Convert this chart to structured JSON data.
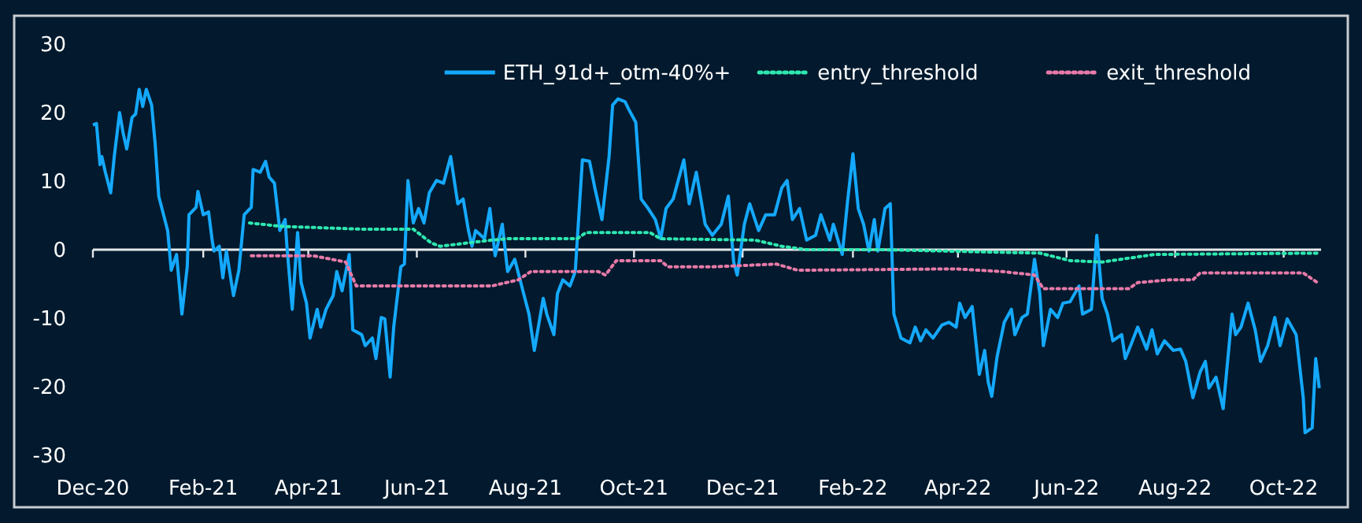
{
  "chart_data": {
    "type": "line",
    "legend": "top right",
    "xlim": [
      "2020-12-01",
      "2022-10-22"
    ],
    "xticks": [
      {
        "value": "2020-12-01",
        "label": "Dec-20"
      },
      {
        "value": "2021-02-01",
        "label": "Feb-21"
      },
      {
        "value": "2021-04-01",
        "label": "Apr-21"
      },
      {
        "value": "2021-06-01",
        "label": "Jun-21"
      },
      {
        "value": "2021-08-01",
        "label": "Aug-21"
      },
      {
        "value": "2021-10-01",
        "label": "Oct-21"
      },
      {
        "value": "2021-12-01",
        "label": "Dec-21"
      },
      {
        "value": "2022-02-01",
        "label": "Feb-22"
      },
      {
        "value": "2022-04-01",
        "label": "Apr-22"
      },
      {
        "value": "2022-06-01",
        "label": "Jun-22"
      },
      {
        "value": "2022-08-01",
        "label": "Aug-22"
      },
      {
        "value": "2022-10-01",
        "label": "Oct-22"
      }
    ],
    "ylim": [
      -30,
      30
    ],
    "yticks": [
      -30,
      -20,
      -10,
      0,
      10,
      20,
      30
    ],
    "series": [
      {
        "name": "ETH_91d+_otm-40%+",
        "color": "#14a9ff",
        "line_style": "solid",
        "x": [
          "2020-12-01",
          "2020-12-03",
          "2020-12-05",
          "2020-12-06",
          "2020-12-08",
          "2020-12-11",
          "2020-12-13",
          "2020-12-16",
          "2020-12-18",
          "2020-12-20",
          "2020-12-23",
          "2020-12-25",
          "2020-12-27",
          "2020-12-29",
          "2020-12-31",
          "2021-01-03",
          "2021-01-05",
          "2021-01-07",
          "2021-01-12",
          "2021-01-14",
          "2021-01-17",
          "2021-01-20",
          "2021-01-23",
          "2021-01-24",
          "2021-01-28",
          "2021-01-29",
          "2021-02-01",
          "2021-02-04",
          "2021-02-06",
          "2021-02-07",
          "2021-02-10",
          "2021-02-12",
          "2021-02-14",
          "2021-02-18",
          "2021-02-21",
          "2021-02-24",
          "2021-02-28",
          "2021-03-01",
          "2021-03-05",
          "2021-03-08",
          "2021-03-10",
          "2021-03-13",
          "2021-03-16",
          "2021-03-19",
          "2021-03-20",
          "2021-03-23",
          "2021-03-26",
          "2021-03-28",
          "2021-03-31",
          "2021-04-02",
          "2021-04-06",
          "2021-04-08",
          "2021-04-11",
          "2021-04-15",
          "2021-04-17",
          "2021-04-20",
          "2021-04-24",
          "2021-04-26",
          "2021-05-01",
          "2021-05-03",
          "2021-05-07",
          "2021-05-09",
          "2021-05-12",
          "2021-05-14",
          "2021-05-17",
          "2021-05-19",
          "2021-05-23",
          "2021-05-25",
          "2021-05-27",
          "2021-05-30",
          "2021-06-02",
          "2021-06-05",
          "2021-06-08",
          "2021-06-12",
          "2021-06-16",
          "2021-06-20",
          "2021-06-24",
          "2021-06-27",
          "2021-06-30",
          "2021-07-02",
          "2021-07-04",
          "2021-07-09",
          "2021-07-12",
          "2021-07-15",
          "2021-07-19",
          "2021-07-22",
          "2021-07-26",
          "2021-07-31",
          "2021-08-03",
          "2021-08-06",
          "2021-08-11",
          "2021-08-13",
          "2021-08-17",
          "2021-08-19",
          "2021-08-22",
          "2021-08-26",
          "2021-08-29",
          "2021-09-02",
          "2021-09-06",
          "2021-09-09",
          "2021-09-13",
          "2021-09-17",
          "2021-09-19",
          "2021-09-22",
          "2021-09-26",
          "2021-09-28",
          "2021-10-02",
          "2021-10-05",
          "2021-10-09",
          "2021-10-13",
          "2021-10-16",
          "2021-10-19",
          "2021-10-23",
          "2021-10-29",
          "2021-11-01",
          "2021-11-05",
          "2021-11-10",
          "2021-11-14",
          "2021-11-19",
          "2021-11-23",
          "2021-11-26",
          "2021-11-28",
          "2021-12-02",
          "2021-12-05",
          "2021-12-10",
          "2021-12-14",
          "2021-12-19",
          "2021-12-23",
          "2021-12-26",
          "2021-12-29",
          "2022-01-02",
          "2022-01-06",
          "2022-01-11",
          "2022-01-14",
          "2022-01-19",
          "2022-01-21",
          "2022-01-26",
          "2022-01-29",
          "2022-02-01",
          "2022-02-04",
          "2022-02-07",
          "2022-02-10",
          "2022-02-13",
          "2022-02-15",
          "2022-02-19",
          "2022-02-22",
          "2022-02-24",
          "2022-02-28",
          "2022-03-05",
          "2022-03-08",
          "2022-03-11",
          "2022-03-14",
          "2022-03-18",
          "2022-03-23",
          "2022-03-27",
          "2022-03-31",
          "2022-04-02",
          "2022-04-05",
          "2022-04-09",
          "2022-04-13",
          "2022-04-16",
          "2022-04-18",
          "2022-04-20",
          "2022-04-23",
          "2022-04-27",
          "2022-05-01",
          "2022-05-03",
          "2022-05-07",
          "2022-05-10",
          "2022-05-14",
          "2022-05-17",
          "2022-05-19",
          "2022-05-23",
          "2022-05-27",
          "2022-05-30",
          "2022-06-03",
          "2022-06-08",
          "2022-06-10",
          "2022-06-15",
          "2022-06-18",
          "2022-06-21",
          "2022-06-24",
          "2022-06-27",
          "2022-07-02",
          "2022-07-04",
          "2022-07-07",
          "2022-07-11",
          "2022-07-16",
          "2022-07-19",
          "2022-07-22",
          "2022-07-26",
          "2022-07-31",
          "2022-08-04",
          "2022-08-07",
          "2022-08-11",
          "2022-08-15",
          "2022-08-18",
          "2022-08-20",
          "2022-08-24",
          "2022-08-28",
          "2022-09-02",
          "2022-09-04",
          "2022-09-07",
          "2022-09-11",
          "2022-09-15",
          "2022-09-18",
          "2022-09-22",
          "2022-09-26",
          "2022-09-29",
          "2022-10-03",
          "2022-10-08",
          "2022-10-12",
          "2022-10-13",
          "2022-10-17",
          "2022-10-19",
          "2022-10-21"
        ],
        "values": [
          18.2,
          18.4,
          12.4,
          13.6,
          11.3,
          8.3,
          13.6,
          20,
          17,
          14.7,
          19.3,
          19.8,
          23.4,
          20.9,
          23.4,
          21.1,
          15.4,
          7.8,
          2.8,
          -3,
          -0.7,
          -9.4,
          -2.5,
          5.1,
          6.2,
          8.5,
          5.1,
          5.5,
          1.4,
          -0.2,
          0.5,
          -4.1,
          -0.2,
          -6.7,
          -3,
          5.1,
          6.2,
          11.7,
          11.3,
          12.9,
          10.6,
          9.7,
          2.8,
          4.4,
          0.5,
          -8.7,
          2.5,
          -4.8,
          -7.8,
          -12.9,
          -8.7,
          -11.3,
          -8.7,
          -6.7,
          -3.2,
          -6,
          -0.7,
          -11.7,
          -12.4,
          -14,
          -12.9,
          -15.9,
          -9.9,
          -10.1,
          -18.6,
          -11.3,
          -2.5,
          -2.1,
          10.1,
          3.9,
          6,
          3.9,
          8.3,
          10.1,
          9.7,
          13.6,
          6.7,
          7.4,
          2.8,
          0.5,
          2.8,
          1.6,
          6,
          -0.9,
          3.7,
          -3.2,
          -1.4,
          -6.4,
          -9.4,
          -14.7,
          -7.1,
          -9.4,
          -12.4,
          -6.4,
          -4.4,
          -5.3,
          -3.2,
          13.1,
          12.9,
          9,
          4.4,
          13.6,
          21.1,
          22,
          21.6,
          20.5,
          18.6,
          7.4,
          6,
          4.4,
          1.6,
          6,
          7.4,
          13.1,
          6.7,
          11.3,
          3.7,
          2.1,
          3.7,
          7.8,
          -1.8,
          -3.7,
          3.7,
          6.7,
          2.8,
          5.1,
          5.1,
          9,
          10.1,
          4.4,
          6,
          1.4,
          2.1,
          5.1,
          1.4,
          3.7,
          -0.7,
          7.1,
          14,
          6,
          3.7,
          -0.2,
          4.4,
          -0.2,
          6,
          6.7,
          -9.4,
          -12.9,
          -13.6,
          -11.3,
          -13.3,
          -11.7,
          -12.9,
          -11,
          -10.6,
          -11.3,
          -7.8,
          -9.9,
          -8.3,
          -18.2,
          -14.7,
          -19.3,
          -21.4,
          -15.6,
          -10.6,
          -8.7,
          -12.4,
          -9.9,
          -9.4,
          -1.4,
          -6.4,
          -14,
          -8.7,
          -9.9,
          -7.8,
          -7.6,
          -5.3,
          -9.4,
          -8.7,
          2.1,
          -7.1,
          -9.4,
          -13.3,
          -12.4,
          -15.9,
          -14,
          -11.3,
          -14.5,
          -11.7,
          -15.2,
          -13.3,
          -14.7,
          -14.5,
          -16.3,
          -21.6,
          -17.9,
          -16.3,
          -20.2,
          -18.6,
          -23.2,
          -9.4,
          -12.4,
          -11.3,
          -7.8,
          -11.7,
          -16.3,
          -14,
          -9.9,
          -14,
          -10.1,
          -12.4,
          -21.6,
          -26.7,
          -26,
          -15.9,
          -20.2
        ]
      },
      {
        "name": "entry_threshold",
        "color": "#2ee8b0",
        "line_style": "dotted",
        "x": [
          "2021-02-27",
          "2021-03-17",
          "2021-05-01",
          "2021-05-30",
          "2021-06-09",
          "2021-06-14",
          "2021-07-13",
          "2021-07-22",
          "2021-08-30",
          "2021-09-04",
          "2021-10-10",
          "2021-10-16",
          "2021-12-08",
          "2021-12-23",
          "2022-01-06",
          "2022-02-17",
          "2022-05-17",
          "2022-06-03",
          "2022-06-21",
          "2022-07-15",
          "2022-07-20",
          "2022-10-21"
        ],
        "values": [
          3.9,
          3.4,
          3,
          3,
          1,
          0.5,
          1.4,
          1.6,
          1.6,
          2.5,
          2.5,
          1.6,
          1.4,
          0.5,
          0,
          0,
          -0.5,
          -1.6,
          -1.8,
          -0.9,
          -0.7,
          -0.5
        ]
      },
      {
        "name": "exit_threshold",
        "color": "#e87aa8",
        "line_style": "dotted",
        "x": [
          "2021-02-28",
          "2021-04-04",
          "2021-04-22",
          "2021-04-28",
          "2021-07-13",
          "2021-07-28",
          "2021-08-04",
          "2021-09-11",
          "2021-09-15",
          "2021-09-21",
          "2021-10-16",
          "2021-10-20",
          "2021-11-14",
          "2021-12-20",
          "2022-01-01",
          "2022-03-31",
          "2022-04-26",
          "2022-05-14",
          "2022-05-19",
          "2022-07-06",
          "2022-07-11",
          "2022-07-29",
          "2022-08-11",
          "2022-08-15",
          "2022-10-12",
          "2022-10-20"
        ],
        "values": [
          -0.9,
          -0.9,
          -1.8,
          -5.3,
          -5.3,
          -4.4,
          -3.2,
          -3.2,
          -3.7,
          -1.6,
          -1.6,
          -2.5,
          -2.5,
          -2.1,
          -3,
          -2.8,
          -3.2,
          -3.7,
          -5.7,
          -5.7,
          -4.8,
          -4.4,
          -4.4,
          -3.4,
          -3.4,
          -4.8
        ]
      }
    ]
  }
}
